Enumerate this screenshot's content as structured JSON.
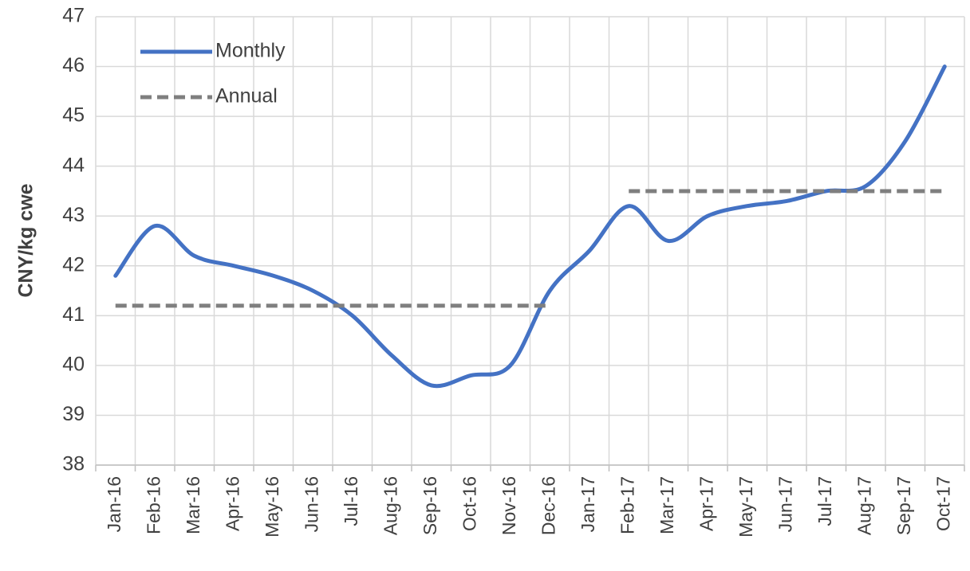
{
  "chart_data": {
    "type": "line",
    "y_label": "CNY/kg cwe",
    "categories": [
      "Jan-16",
      "Feb-16",
      "Mar-16",
      "Apr-16",
      "May-16",
      "Jun-16",
      "Jul-16",
      "Aug-16",
      "Sep-16",
      "Oct-16",
      "Nov-16",
      "Dec-16",
      "Jan-17",
      "Feb-17",
      "Mar-17",
      "Apr-17",
      "May-17",
      "Jun-17",
      "Jul-17",
      "Aug-17",
      "Sep-17",
      "Oct-17"
    ],
    "series": [
      {
        "name": "Monthly",
        "color": "#4472c4",
        "dash": false,
        "smooth": true,
        "values": [
          41.8,
          42.8,
          42.2,
          42.0,
          41.8,
          41.5,
          41.0,
          40.2,
          39.6,
          39.8,
          40.0,
          41.5,
          42.3,
          43.2,
          42.5,
          43.0,
          43.2,
          43.3,
          43.5,
          43.6,
          44.5,
          46.0
        ]
      },
      {
        "name": "Annual",
        "color": "#7f7f7f",
        "dash": true,
        "smooth": false,
        "values": [
          41.2,
          41.2,
          41.2,
          41.2,
          41.2,
          41.2,
          41.2,
          41.2,
          41.2,
          41.2,
          41.2,
          41.2,
          null,
          43.5,
          43.5,
          43.5,
          43.5,
          43.5,
          43.5,
          43.5,
          43.5,
          43.5
        ]
      }
    ],
    "ylim": [
      38,
      47
    ],
    "yticks": [
      38,
      39,
      40,
      41,
      42,
      43,
      44,
      45,
      46,
      47
    ],
    "grid": true,
    "legend": "upper-left"
  }
}
